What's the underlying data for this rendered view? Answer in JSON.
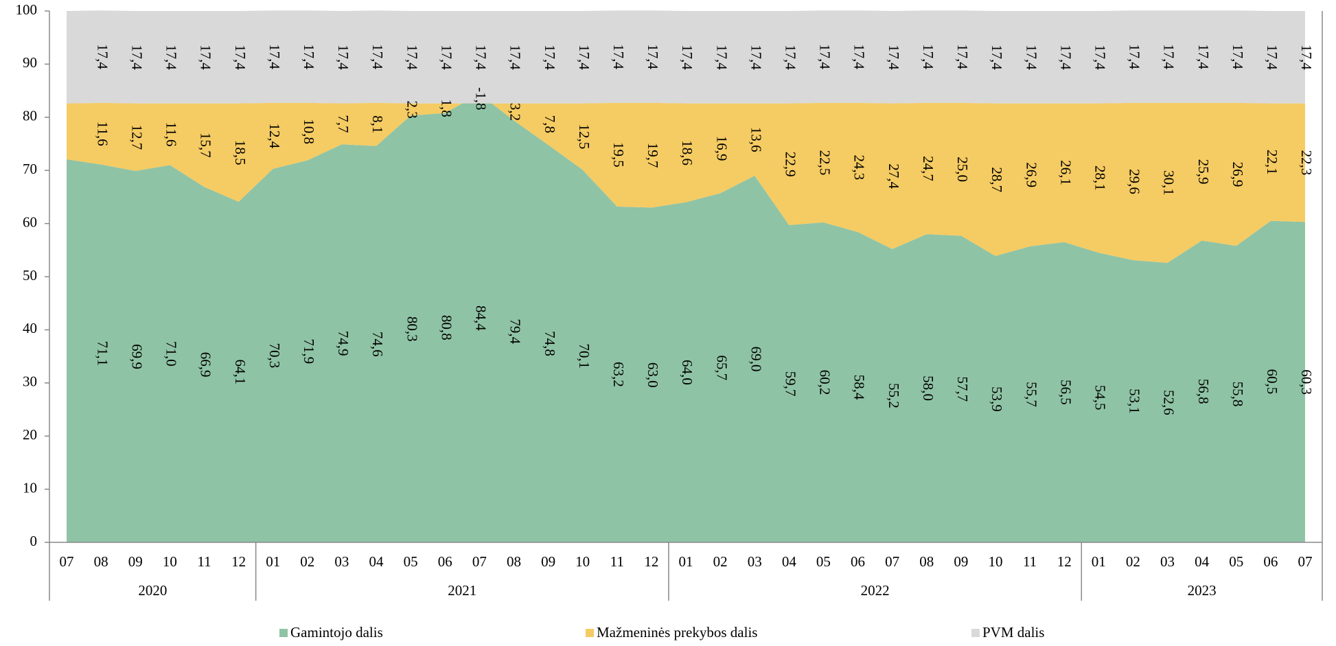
{
  "chart_data": {
    "type": "stacked-area",
    "categories": [
      "07",
      "08",
      "09",
      "10",
      "11",
      "12",
      "01",
      "02",
      "03",
      "04",
      "05",
      "06",
      "07",
      "08",
      "09",
      "10",
      "11",
      "12",
      "01",
      "02",
      "03",
      "04",
      "05",
      "06",
      "07",
      "08",
      "09",
      "10",
      "11",
      "12",
      "01",
      "02",
      "03",
      "04",
      "05",
      "06",
      "07"
    ],
    "years": [
      "2020",
      "2021",
      "2022",
      "2023"
    ],
    "ylim": [
      0,
      100
    ],
    "yticks": [
      0,
      10,
      20,
      30,
      40,
      50,
      60,
      70,
      80,
      90,
      100
    ],
    "legend": "bottom",
    "series": [
      {
        "name": "Gamintojo dalis",
        "color": "#8fc3a5",
        "values": [
          72.1,
          71.1,
          69.9,
          71.0,
          66.9,
          64.1,
          70.3,
          71.9,
          74.9,
          74.6,
          80.3,
          80.8,
          84.4,
          79.4,
          74.8,
          70.1,
          63.2,
          63.0,
          64.0,
          65.7,
          69.0,
          59.7,
          60.2,
          58.4,
          55.2,
          58.0,
          57.7,
          53.9,
          55.7,
          56.5,
          54.5,
          53.1,
          52.6,
          56.8,
          55.8,
          60.5,
          60.3
        ],
        "value_labels": [
          null,
          "71,1",
          "69,9",
          "71,0",
          "66,9",
          "64,1",
          "70,3",
          "71,9",
          "74,9",
          "74,6",
          "80,3",
          "80,8",
          "84,4",
          "79,4",
          "74,8",
          "70,1",
          "63,2",
          "63,0",
          "64,0",
          "65,7",
          "69,0",
          "59,7",
          "60,2",
          "58,4",
          "55,2",
          "58,0",
          "57,7",
          "53,9",
          "55,7",
          "56,5",
          "54,5",
          "53,1",
          "52,6",
          "56,8",
          "55,8",
          "60,5",
          "60,3"
        ]
      },
      {
        "name": "Mažmeninės prekybos dalis",
        "color": "#f5cb63",
        "values": [
          10.5,
          11.6,
          12.7,
          11.6,
          15.7,
          18.5,
          12.4,
          10.8,
          7.7,
          8.1,
          2.3,
          1.8,
          -1.8,
          3.2,
          7.8,
          12.5,
          19.5,
          19.7,
          18.6,
          16.9,
          13.6,
          22.9,
          22.5,
          24.3,
          27.4,
          24.7,
          25.0,
          28.7,
          26.9,
          26.1,
          28.1,
          29.6,
          30.1,
          25.9,
          26.9,
          22.1,
          22.3
        ],
        "value_labels": [
          null,
          "11,6",
          "12,7",
          "11,6",
          "15,7",
          "18,5",
          "12,4",
          "10,8",
          "7,7",
          "8,1",
          "2,3",
          "1,8",
          "-1,8",
          "3,2",
          "7,8",
          "12,5",
          "19,5",
          "19,7",
          "18,6",
          "16,9",
          "13,6",
          "22,9",
          "22,5",
          "24,3",
          "27,4",
          "24,7",
          "25,0",
          "28,7",
          "26,9",
          "26,1",
          "28,1",
          "29,6",
          "30,1",
          "25,9",
          "26,9",
          "22,1",
          "22,3"
        ]
      },
      {
        "name": "PVM dalis",
        "color": "#d9d9d9",
        "values": [
          17.4,
          17.4,
          17.4,
          17.4,
          17.4,
          17.4,
          17.4,
          17.4,
          17.4,
          17.4,
          17.4,
          17.4,
          17.4,
          17.4,
          17.4,
          17.4,
          17.4,
          17.4,
          17.4,
          17.4,
          17.4,
          17.4,
          17.4,
          17.4,
          17.4,
          17.4,
          17.4,
          17.4,
          17.4,
          17.4,
          17.4,
          17.4,
          17.4,
          17.4,
          17.4,
          17.4,
          17.4
        ],
        "value_labels": [
          null,
          "17,4",
          "17,4",
          "17,4",
          "17,4",
          "17,4",
          "17,4",
          "17,4",
          "17,4",
          "17,4",
          "17,4",
          "17,4",
          "17,4",
          "17,4",
          "17,4",
          "17,4",
          "17,4",
          "17,4",
          "17,4",
          "17,4",
          "17,4",
          "17,4",
          "17,4",
          "17,4",
          "17,4",
          "17,4",
          "17,4",
          "17,4",
          "17,4",
          "17,4",
          "17,4",
          "17,4",
          "17,4",
          "17,4",
          "17,4",
          "17,4",
          "17,4"
        ]
      }
    ]
  }
}
